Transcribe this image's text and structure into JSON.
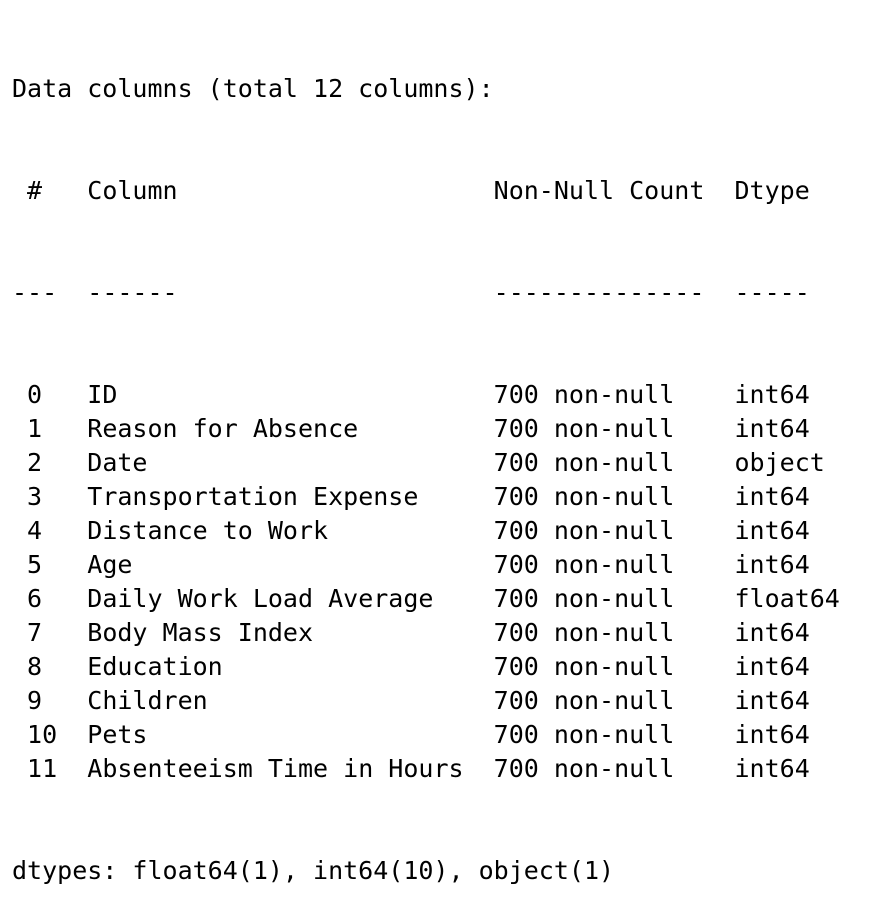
{
  "output": {
    "header": "Data columns (total 12 columns):",
    "column_headers": {
      "index": "#",
      "column": "Column",
      "count": "Non-Null Count",
      "dtype": "Dtype"
    },
    "separators": {
      "index": "---",
      "column": "------",
      "count": "--------------",
      "dtype": "-----"
    },
    "rows": [
      {
        "index": "0",
        "column": "ID",
        "count": "700 non-null",
        "dtype": "int64"
      },
      {
        "index": "1",
        "column": "Reason for Absence",
        "count": "700 non-null",
        "dtype": "int64"
      },
      {
        "index": "2",
        "column": "Date",
        "count": "700 non-null",
        "dtype": "object"
      },
      {
        "index": "3",
        "column": "Transportation Expense",
        "count": "700 non-null",
        "dtype": "int64"
      },
      {
        "index": "4",
        "column": "Distance to Work",
        "count": "700 non-null",
        "dtype": "int64"
      },
      {
        "index": "5",
        "column": "Age",
        "count": "700 non-null",
        "dtype": "int64"
      },
      {
        "index": "6",
        "column": "Daily Work Load Average",
        "count": "700 non-null",
        "dtype": "float64"
      },
      {
        "index": "7",
        "column": "Body Mass Index",
        "count": "700 non-null",
        "dtype": "int64"
      },
      {
        "index": "8",
        "column": "Education",
        "count": "700 non-null",
        "dtype": "int64"
      },
      {
        "index": "9",
        "column": "Children",
        "count": "700 non-null",
        "dtype": "int64"
      },
      {
        "index": "10",
        "column": "Pets",
        "count": "700 non-null",
        "dtype": "int64"
      },
      {
        "index": "11",
        "column": "Absenteeism Time in Hours",
        "count": "700 non-null",
        "dtype": "int64"
      }
    ],
    "footer": "dtypes: float64(1), int64(10), object(1)"
  }
}
